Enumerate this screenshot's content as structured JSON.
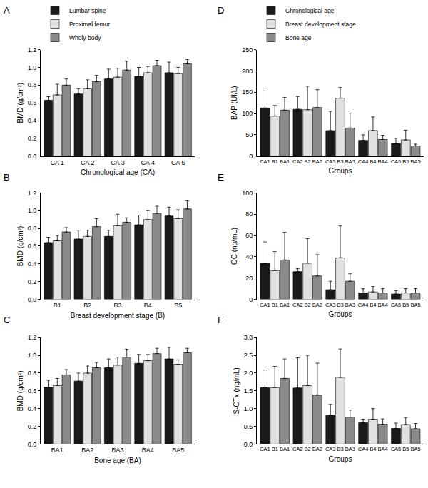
{
  "chart_data": [
    {
      "type": "bar",
      "title": "A",
      "xlabel": "Chronological age (CA)",
      "ylabel": "BMD (g/cm²)",
      "categories": [
        "CA 1",
        "CA 2",
        "CA 3",
        "CA 4",
        "CA 5"
      ],
      "series": [
        {
          "name": "Lumbar spine",
          "color": "#1a1a1a",
          "values": [
            0.63,
            0.7,
            0.87,
            0.9,
            0.94
          ],
          "errors": [
            0.04,
            0.06,
            0.11,
            0.1,
            0.12
          ]
        },
        {
          "name": "Proximal femur",
          "color": "#e0e0e0",
          "values": [
            0.69,
            0.76,
            0.89,
            0.94,
            0.93
          ],
          "errors": [
            0.12,
            0.1,
            0.1,
            0.07,
            0.07
          ]
        },
        {
          "name": "Wholy body",
          "color": "#8a8a8a",
          "values": [
            0.8,
            0.84,
            0.97,
            1.02,
            1.04
          ],
          "errors": [
            0.07,
            0.07,
            0.1,
            0.06,
            0.05
          ]
        }
      ],
      "ylim": [
        0,
        1.2
      ],
      "yticks": [
        {
          "value": 0,
          "label": "0.0"
        },
        0.2,
        0.4,
        0.6,
        0.8,
        {
          "value": 1,
          "label": "1.0"
        },
        1.2
      ],
      "legend": "upper left",
      "grid": false
    },
    {
      "type": "bar",
      "title": "B",
      "xlabel": "Breast development stage (B)",
      "ylabel": "BMD (g/cm²)",
      "categories": [
        "B1",
        "B2",
        "B3",
        "B4",
        "B5"
      ],
      "series": [
        {
          "color": "#1a1a1a",
          "values": [
            0.64,
            0.68,
            0.71,
            0.84,
            0.94
          ],
          "errors": [
            0.06,
            0.1,
            0.07,
            0.11,
            0.1
          ]
        },
        {
          "color": "#e0e0e0",
          "values": [
            0.66,
            0.71,
            0.83,
            0.9,
            0.91
          ],
          "errors": [
            0.06,
            0.07,
            0.13,
            0.1,
            0.1
          ]
        },
        {
          "color": "#8a8a8a",
          "values": [
            0.76,
            0.82,
            0.87,
            0.97,
            1.02
          ],
          "errors": [
            0.05,
            0.09,
            0.05,
            0.08,
            0.09
          ]
        }
      ],
      "ylim": [
        0,
        1.2
      ],
      "yticks": [
        {
          "value": 0,
          "label": "0.0"
        },
        0.2,
        0.4,
        0.6,
        0.8,
        {
          "value": 1,
          "label": "1.0"
        },
        1.2
      ],
      "grid": false
    },
    {
      "type": "bar",
      "title": "C",
      "xlabel": "Bone age (BA)",
      "ylabel": "BMD (g/cm²)",
      "categories": [
        "BA1",
        "BA2",
        "BA3",
        "BA4",
        "BA5"
      ],
      "series": [
        {
          "color": "#1a1a1a",
          "values": [
            0.64,
            0.71,
            0.86,
            0.91,
            0.96
          ],
          "errors": [
            0.08,
            0.09,
            0.1,
            0.1,
            0.13
          ]
        },
        {
          "color": "#e0e0e0",
          "values": [
            0.66,
            0.8,
            0.89,
            0.94,
            0.9
          ],
          "errors": [
            0.08,
            0.08,
            0.09,
            0.07,
            0.05
          ]
        },
        {
          "color": "#8a8a8a",
          "values": [
            0.78,
            0.86,
            0.98,
            1.02,
            1.03
          ],
          "errors": [
            0.06,
            0.06,
            0.09,
            0.06,
            0.05
          ]
        }
      ],
      "ylim": [
        0,
        1.2
      ],
      "yticks": [
        {
          "value": 0,
          "label": "0.0"
        },
        0.2,
        0.4,
        0.6,
        0.8,
        {
          "value": 1,
          "label": "1.0"
        },
        1.2
      ],
      "grid": false
    },
    {
      "type": "bar",
      "title": "D",
      "xlabel": "Groups",
      "ylabel": "BAP (UI/L)",
      "series": [
        {
          "name": "Chronological age",
          "color": "#1a1a1a",
          "labels": [
            "CA1",
            "CA2",
            "CA3",
            "CA4",
            "CA5"
          ],
          "values": [
            113,
            110,
            60,
            37,
            30
          ],
          "errors": [
            40,
            30,
            45,
            13,
            12
          ]
        },
        {
          "name": "Breast development stage",
          "color": "#e0e0e0",
          "labels": [
            "B1",
            "B2",
            "B3",
            "B4",
            "B5"
          ],
          "values": [
            94,
            109,
            136,
            60,
            38
          ],
          "errors": [
            25,
            55,
            25,
            32,
            23
          ]
        },
        {
          "name": "Bone age",
          "color": "#8a8a8a",
          "labels": [
            "BA1",
            "BA2",
            "BA3",
            "BA4",
            "BA5"
          ],
          "values": [
            108,
            114,
            66,
            39,
            24
          ],
          "errors": [
            30,
            42,
            35,
            10,
            4
          ]
        }
      ],
      "ylim": [
        0,
        250
      ],
      "yticks": [
        0,
        50,
        100,
        150,
        200,
        250
      ],
      "legend": "upper left",
      "grid": false
    },
    {
      "type": "bar",
      "title": "E",
      "xlabel": "Groups",
      "ylabel": "OC (ng/mL)",
      "series": [
        {
          "color": "#1a1a1a",
          "labels": [
            "CA1",
            "CA2",
            "CA3",
            "CA4",
            "CA5"
          ],
          "values": [
            34,
            26,
            9,
            6,
            5
          ],
          "errors": [
            20,
            3,
            8,
            4,
            3
          ]
        },
        {
          "color": "#e0e0e0",
          "labels": [
            "B1",
            "B2",
            "B3",
            "B4",
            "B5"
          ],
          "values": [
            27,
            34,
            39,
            7,
            6
          ],
          "errors": [
            18,
            23,
            30,
            5,
            4
          ]
        },
        {
          "color": "#8a8a8a",
          "labels": [
            "BA1",
            "BA2",
            "BA3",
            "BA4",
            "BA5"
          ],
          "values": [
            37,
            22,
            17,
            6,
            6
          ],
          "errors": [
            26,
            20,
            7,
            4,
            4
          ]
        }
      ],
      "ylim": [
        0,
        100
      ],
      "yticks": [
        0,
        20,
        40,
        60,
        80,
        100
      ],
      "grid": false
    },
    {
      "type": "bar",
      "title": "F",
      "xlabel": "Groups",
      "ylabel": "S-CTx (ng/mL)",
      "series": [
        {
          "color": "#1a1a1a",
          "labels": [
            "CA1",
            "CA2",
            "CA3",
            "CA4",
            "CA5"
          ],
          "values": [
            1.59,
            1.58,
            0.82,
            0.6,
            0.44
          ],
          "errors": [
            0.5,
            0.85,
            0.3,
            0.1,
            0.15
          ]
        },
        {
          "color": "#e0e0e0",
          "labels": [
            "B1",
            "B2",
            "B3",
            "B4",
            "B5"
          ],
          "values": [
            1.59,
            1.65,
            1.88,
            0.7,
            0.55
          ],
          "errors": [
            0.6,
            0.85,
            0.8,
            0.3,
            0.2
          ]
        },
        {
          "color": "#8a8a8a",
          "labels": [
            "BA1",
            "BA2",
            "BA3",
            "BA4",
            "BA5"
          ],
          "values": [
            1.85,
            1.38,
            0.76,
            0.56,
            0.43
          ],
          "errors": [
            0.55,
            0.9,
            0.2,
            0.15,
            0.15
          ]
        }
      ],
      "ylim": [
        0,
        3
      ],
      "yticks": [
        {
          "value": 0,
          "label": "0.0"
        },
        0.5,
        {
          "value": 1,
          "label": "1.0"
        },
        1.5,
        {
          "value": 2,
          "label": "2.0"
        },
        2.5,
        {
          "value": 3,
          "label": "3.0"
        }
      ],
      "grid": false
    }
  ]
}
